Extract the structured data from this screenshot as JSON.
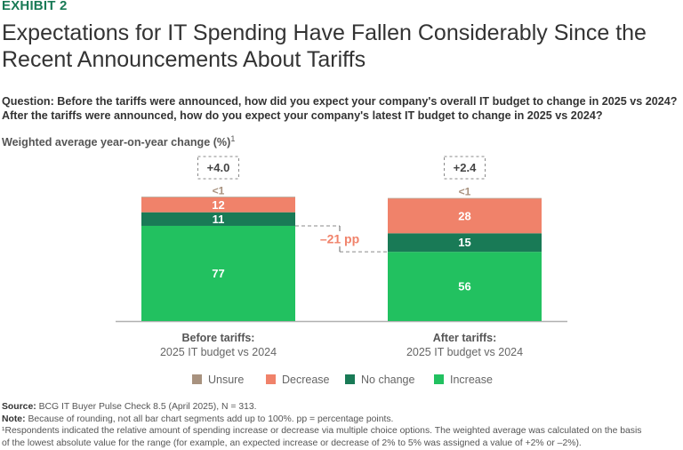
{
  "exhibit": "EXHIBIT 2",
  "title_lines": [
    "Expectations for IT Spending Have Fallen Considerably Since the",
    "Recent Announcements About Tariffs"
  ],
  "question_lines": [
    "Question: Before the tariffs were announced, how did you expect your company's overall IT budget to change in 2025 vs 2024?",
    "After the tariffs were announced, how do you expect your company's latest IT budget to change in 2025 vs 2024?"
  ],
  "subtitle": "Weighted average year-on-year change (%)",
  "subtitle_sup": "1",
  "colors": {
    "exhibit": "#197a56",
    "unsure": "#a8927f",
    "decrease": "#f0826a",
    "no_change": "#197a56",
    "increase": "#22c160",
    "delta": "#f0826a"
  },
  "chart_data": {
    "type": "bar",
    "stacked": true,
    "title": "Weighted average year-on-year change (%)",
    "categories": [
      {
        "label": "Before tariffs:",
        "sublabel": "2025 IT budget vs 2024"
      },
      {
        "label": "After tariffs:",
        "sublabel": "2025 IT budget vs 2024"
      }
    ],
    "series": [
      {
        "name": "Increase",
        "key": "increase",
        "values": [
          77,
          56
        ],
        "labels": [
          "77",
          "56"
        ]
      },
      {
        "name": "No change",
        "key": "no_change",
        "values": [
          11,
          15
        ],
        "labels": [
          "11",
          "15"
        ]
      },
      {
        "name": "Decrease",
        "key": "decrease",
        "values": [
          12,
          28
        ],
        "labels": [
          "12",
          "28"
        ]
      },
      {
        "name": "Unsure",
        "key": "unsure",
        "values": [
          0.5,
          0.5
        ],
        "labels": [
          "<1",
          "<1"
        ]
      }
    ],
    "totals": [
      "+4.0",
      "+2.4"
    ],
    "annotation": "–21 pp",
    "legend": [
      "Unsure",
      "Decrease",
      "No change",
      "Increase"
    ],
    "legend_keys": [
      "unsure",
      "decrease",
      "no_change",
      "increase"
    ],
    "legend_position": "bottom",
    "ylim": [
      0,
      100
    ],
    "grid": false
  },
  "footer": {
    "source_label": "Source:",
    "source_text": " BCG IT Buyer Pulse Check 8.5 (April 2025), N = 313.",
    "note_label": "Note:",
    "note_text": " Because of rounding, not all bar chart segments add up to 100%. pp = percentage points.",
    "footnote_lines": [
      "¹Respondents indicated the relative amount of spending increase or decrease via multiple choice options. The weighted average was calculated on the basis",
      "of the lowest absolute value for the range (for example, an expected increase or decrease of 2% to 5% was assigned a value of +2% or –2%)."
    ]
  }
}
